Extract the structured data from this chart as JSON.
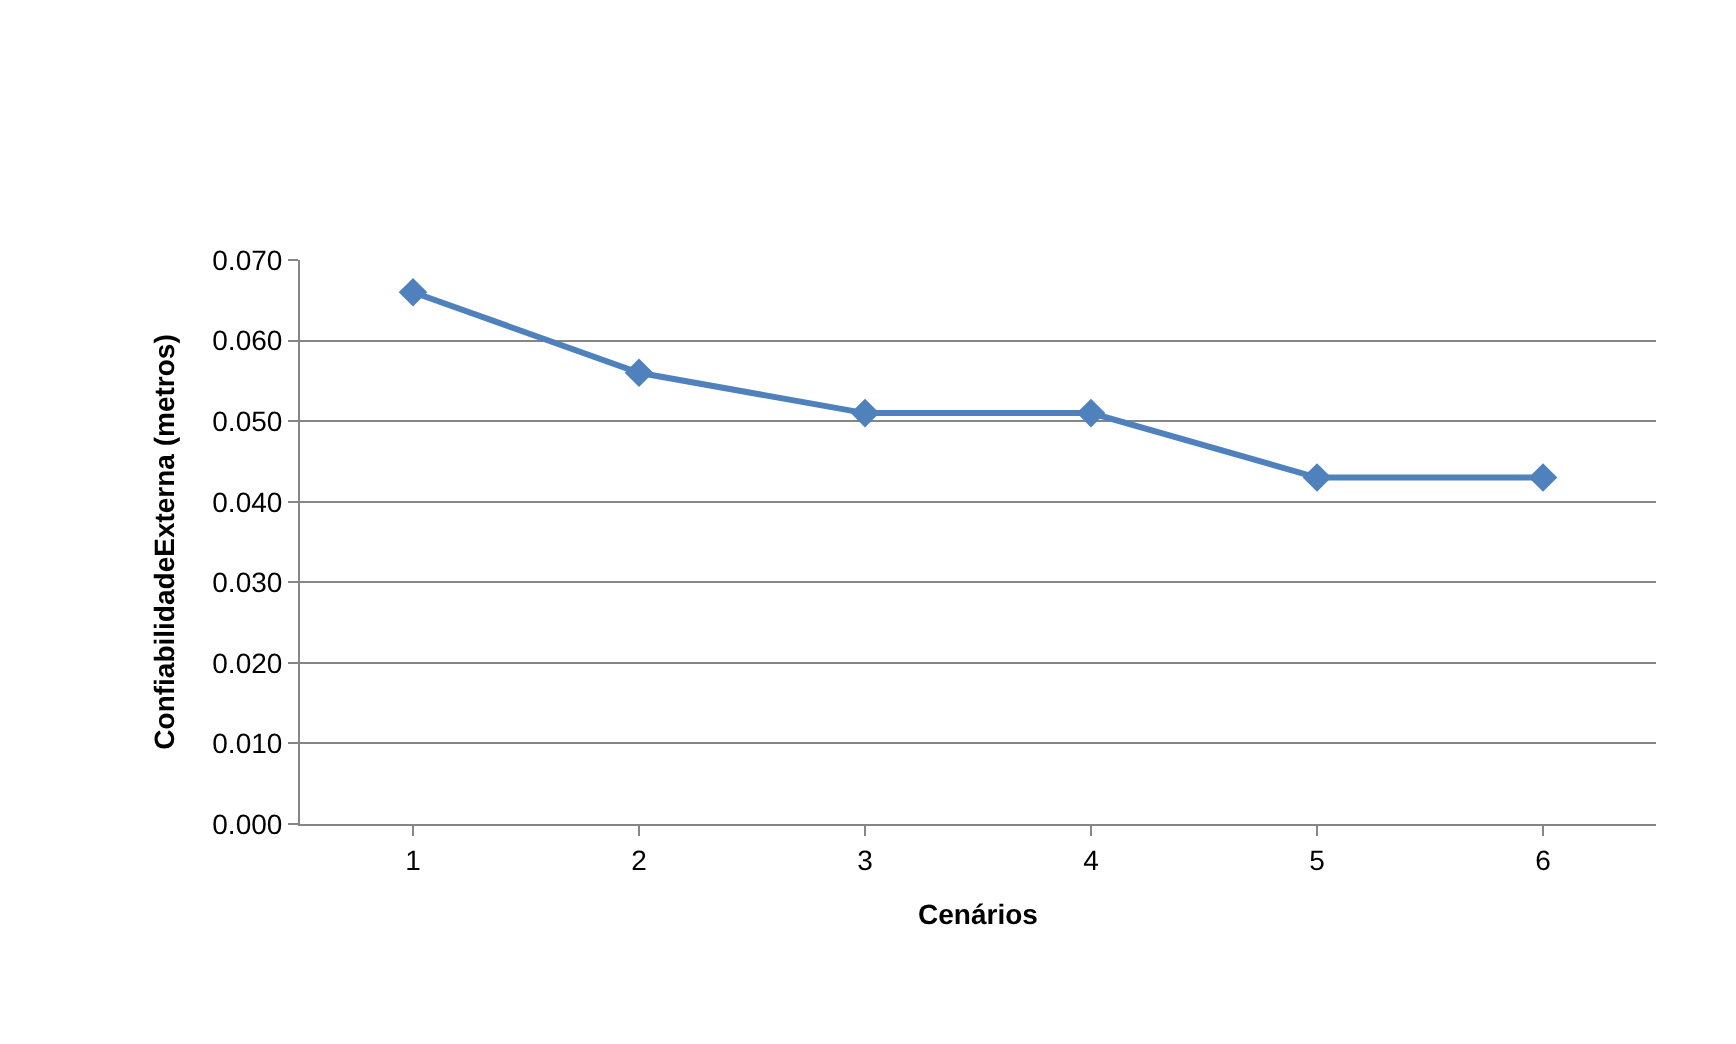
{
  "chart_data": {
    "type": "line",
    "xlabel": "Cenários",
    "ylabel": "ConfiabilidadeExterna (metros)",
    "categories": [
      "1",
      "2",
      "3",
      "4",
      "5",
      "6"
    ],
    "series": [
      {
        "color": "#4f81bd",
        "values": [
          0.066,
          0.056,
          0.051,
          0.051,
          0.043,
          0.043
        ]
      }
    ],
    "ylim": [
      0,
      0.07
    ],
    "yticks": [
      {
        "value": 0,
        "label": "0.000"
      },
      {
        "value": 0.01,
        "label": "0.010"
      },
      {
        "value": 0.02,
        "label": "0.020"
      },
      {
        "value": 0.03,
        "label": "0.030"
      },
      {
        "value": 0.04,
        "label": "0.040"
      },
      {
        "value": 0.05,
        "label": "0.050"
      },
      {
        "value": 0.06,
        "label": "0.060"
      },
      {
        "value": 0.07,
        "label": "0.070"
      }
    ],
    "grid": "y",
    "marker": "diamond",
    "line_style": "solid",
    "legend": false
  }
}
